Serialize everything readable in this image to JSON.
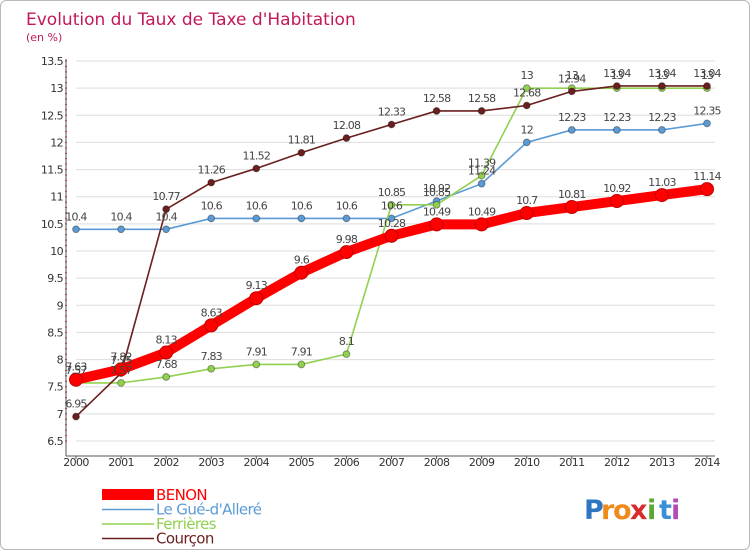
{
  "chart_data": {
    "type": "line",
    "title": "Evolution du Taux de Taxe d'Habitation",
    "unit_label": "(en %)",
    "xlabel": "",
    "ylabel": "",
    "x": [
      "2000",
      "2001",
      "2002",
      "2003",
      "2004",
      "2005",
      "2006",
      "2007",
      "2008",
      "2009",
      "2010",
      "2011",
      "2012",
      "2013",
      "2014"
    ],
    "ylim": [
      6.5,
      13.5
    ],
    "yticks": [
      "6.5",
      "7",
      "7.5",
      "8",
      "8.5",
      "9",
      "9.5",
      "10",
      "10.5",
      "11",
      "11.5",
      "12",
      "12.5",
      "13",
      "13.5"
    ],
    "grid": true,
    "legend_position": "bottom-left",
    "series": [
      {
        "name": "BENON",
        "color": "#ff0000",
        "values": [
          7.63,
          7.82,
          8.13,
          8.63,
          9.13,
          9.6,
          9.98,
          10.28,
          10.49,
          10.49,
          10.7,
          10.81,
          10.92,
          11.03,
          11.14
        ]
      },
      {
        "name": "Le Gué-d'Alleré",
        "color": "#5b9bd5",
        "values": [
          10.4,
          10.4,
          10.4,
          10.6,
          10.6,
          10.6,
          10.6,
          10.6,
          10.92,
          11.24,
          12,
          12.23,
          12.23,
          12.23,
          12.35
        ]
      },
      {
        "name": "Ferrières",
        "color": "#92d050",
        "values": [
          7.57,
          7.57,
          7.68,
          7.83,
          7.91,
          7.91,
          8.1,
          10.85,
          10.85,
          11.39,
          13,
          13,
          13,
          13,
          13
        ]
      },
      {
        "name": "Courçon",
        "color": "#6b1f1f",
        "values": [
          6.95,
          7.75,
          10.77,
          11.26,
          11.52,
          11.81,
          12.08,
          12.33,
          12.58,
          12.58,
          12.68,
          12.94,
          13.04,
          13.04,
          13.04
        ]
      }
    ]
  },
  "logo": {
    "letters": [
      "P",
      "r",
      "o",
      "x",
      "i",
      "t",
      "i"
    ],
    "colors": [
      "#2f76c2",
      "#f08a1c",
      "#f08a1c",
      "#d92b2b",
      "#5aa832",
      "#3a8fd6",
      "#b24db8"
    ]
  }
}
